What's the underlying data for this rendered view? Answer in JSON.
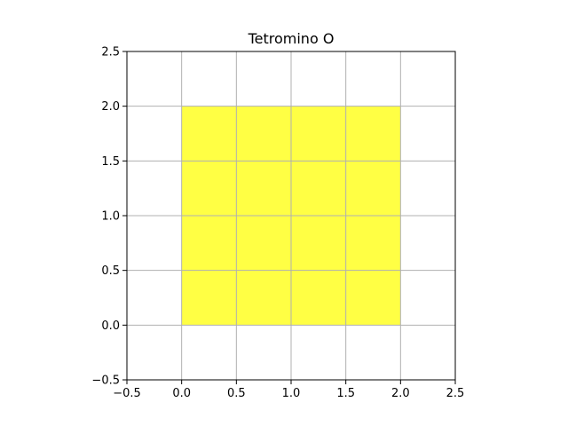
{
  "chart_data": {
    "type": "area",
    "title": "Tetromino O",
    "xlabel": "",
    "ylabel": "",
    "xlim": [
      -0.5,
      2.5
    ],
    "ylim": [
      -0.5,
      2.5
    ],
    "xticks": [
      -0.5,
      0.0,
      0.5,
      1.0,
      1.5,
      2.0,
      2.5
    ],
    "yticks": [
      -0.5,
      0.0,
      0.5,
      1.0,
      1.5,
      2.0,
      2.5
    ],
    "xtick_labels": [
      "−0.5",
      "0.0",
      "0.5",
      "1.0",
      "1.5",
      "2.0",
      "2.5"
    ],
    "ytick_labels": [
      "−0.5",
      "0.0",
      "0.5",
      "1.0",
      "1.5",
      "2.0",
      "2.5"
    ],
    "grid": true,
    "cells": [
      {
        "x": 0,
        "y": 0
      },
      {
        "x": 1,
        "y": 0
      },
      {
        "x": 0,
        "y": 1
      },
      {
        "x": 1,
        "y": 1
      }
    ],
    "cell_size": 1,
    "fill_color": "#ffff44",
    "grid_color": "#b0b0b0",
    "axis_color": "#000000"
  }
}
